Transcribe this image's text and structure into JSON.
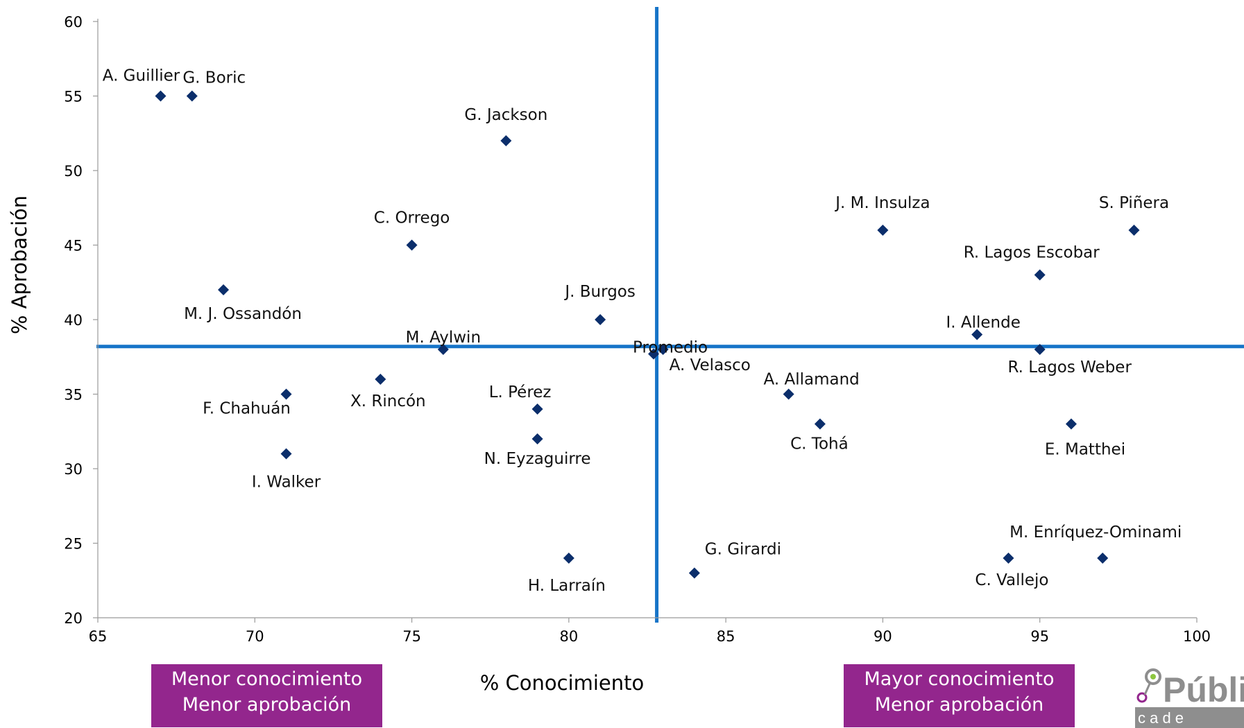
{
  "chart_data": {
    "type": "scatter",
    "xlabel": "% Conocimiento",
    "ylabel": "% Aprobación",
    "xlim": [
      65,
      100
    ],
    "ylim": [
      20,
      60
    ],
    "x_ticks": [
      65,
      70,
      75,
      80,
      85,
      90,
      95,
      100
    ],
    "y_ticks": [
      20,
      25,
      30,
      35,
      40,
      45,
      50,
      55,
      60
    ],
    "marker_color": "#0b2e6b",
    "reference_color": "#1674c8",
    "grid": false,
    "points": [
      {
        "label": "A. Guillier",
        "x": 67,
        "y": 55
      },
      {
        "label": "G. Boric",
        "x": 68,
        "y": 55
      },
      {
        "label": "G. Jackson",
        "x": 78,
        "y": 52
      },
      {
        "label": "C. Orrego",
        "x": 75,
        "y": 45
      },
      {
        "label": "M. J. Ossandón",
        "x": 69,
        "y": 42
      },
      {
        "label": "J. Burgos",
        "x": 81,
        "y": 40
      },
      {
        "label": "M. Aylwin",
        "x": 76,
        "y": 38
      },
      {
        "label": "X. Rincón",
        "x": 74,
        "y": 36
      },
      {
        "label": "F. Chahuán",
        "x": 71,
        "y": 35
      },
      {
        "label": "I. Walker",
        "x": 71,
        "y": 31
      },
      {
        "label": "L. Pérez",
        "x": 79,
        "y": 34
      },
      {
        "label": "N. Eyzaguirre",
        "x": 79,
        "y": 32
      },
      {
        "label": "H. Larraín",
        "x": 80,
        "y": 24
      },
      {
        "label": "Promedio",
        "x": 82.7,
        "y": 37.7
      },
      {
        "label": "A. Velasco",
        "x": 83,
        "y": 38
      },
      {
        "label": "G. Girardi",
        "x": 84,
        "y": 23
      },
      {
        "label": "A. Allamand",
        "x": 87,
        "y": 35
      },
      {
        "label": "C. Tohá",
        "x": 88,
        "y": 33
      },
      {
        "label": "J. M. Insulza",
        "x": 90,
        "y": 46
      },
      {
        "label": "S. Piñera",
        "x": 98,
        "y": 46
      },
      {
        "label": "R. Lagos Escobar",
        "x": 95,
        "y": 43
      },
      {
        "label": "I. Allende",
        "x": 93,
        "y": 39
      },
      {
        "label": "R. Lagos Weber",
        "x": 95,
        "y": 38
      },
      {
        "label": "E. Matthei",
        "x": 96,
        "y": 33
      },
      {
        "label": "M. Enríquez-Ominami",
        "x": 97,
        "y": 24
      },
      {
        "label": "C. Vallejo",
        "x": 94,
        "y": 24
      }
    ],
    "reference_lines": {
      "x": 82.8,
      "y": 38.2
    }
  },
  "quadrant_boxes": [
    {
      "line1": "Menor conocimiento",
      "line2": "Menor aprobación"
    },
    {
      "line1": "Mayor conocimiento",
      "line2": "Menor aprobación"
    }
  ],
  "logo": {
    "text_main": "Públi",
    "text_sub": "c a d e"
  }
}
